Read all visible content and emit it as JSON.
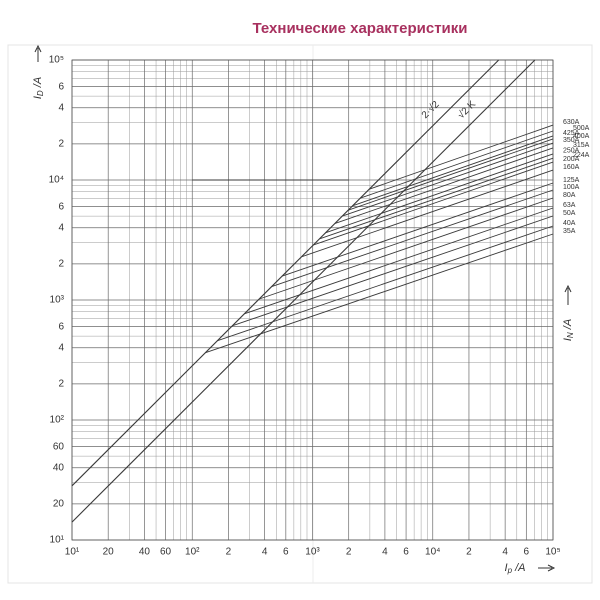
{
  "chart_data": {
    "type": "line",
    "title": "Технические характеристики",
    "xlabel": {
      "symbol": "I",
      "subscript": "p",
      "unit": " /A"
    },
    "ylabel": {
      "symbol": "I",
      "subscript": "D",
      "unit": " /A"
    },
    "y2label": {
      "symbol": "I",
      "subscript": "N",
      "unit": " /A"
    },
    "log_x": true,
    "log_y": true,
    "grid": true,
    "color": "#3a3a3a",
    "xlim": [
      10,
      100000
    ],
    "ylim": [
      10,
      100000
    ],
    "xticks": [
      {
        "value": 10,
        "label": "10¹"
      },
      20,
      40,
      60,
      {
        "value": 100,
        "label": "10²"
      },
      {
        "value": 200,
        "label": "2"
      },
      {
        "value": 400,
        "label": "4"
      },
      {
        "value": 600,
        "label": "6"
      },
      {
        "value": 1000,
        "label": "10³"
      },
      {
        "value": 2000,
        "label": "2"
      },
      {
        "value": 4000,
        "label": "4"
      },
      {
        "value": 6000,
        "label": "6"
      },
      {
        "value": 10000,
        "label": "10⁴"
      },
      {
        "value": 20000,
        "label": "2"
      },
      {
        "value": 40000,
        "label": "4"
      },
      {
        "value": 60000,
        "label": "6"
      },
      {
        "value": 100000,
        "label": "10⁵"
      }
    ],
    "yticks": [
      {
        "value": 10,
        "label": "10¹"
      },
      20,
      40,
      60,
      {
        "value": 100,
        "label": "10²"
      },
      {
        "value": 200,
        "label": "2"
      },
      {
        "value": 400,
        "label": "4"
      },
      {
        "value": 600,
        "label": "6"
      },
      {
        "value": 1000,
        "label": "10³"
      },
      {
        "value": 2000,
        "label": "2"
      },
      {
        "value": 4000,
        "label": "4"
      },
      {
        "value": 6000,
        "label": "6"
      },
      {
        "value": 10000,
        "label": "10⁴"
      },
      {
        "value": 20000,
        "label": "2"
      },
      {
        "value": 40000,
        "label": "4"
      },
      {
        "value": 60000,
        "label": "6"
      },
      {
        "value": 100000,
        "label": "10⁵"
      }
    ],
    "xminorticks": [
      30,
      50,
      70,
      80,
      90,
      300,
      500,
      700,
      800,
      900,
      3000,
      5000,
      7000,
      8000,
      9000,
      30000,
      50000,
      70000,
      80000,
      90000
    ],
    "yminorticks": [
      30,
      50,
      70,
      80,
      90,
      300,
      500,
      700,
      800,
      900,
      3000,
      5000,
      7000,
      8000,
      9000,
      30000,
      50000,
      70000,
      80000,
      90000
    ],
    "limit_lines": [
      {
        "name": "2·√2",
        "x": [
          10,
          35355
        ],
        "values": [
          28.3,
          100000
        ]
      },
      {
        "name": "√2 K",
        "x": [
          10,
          70711
        ],
        "values": [
          14.1,
          100000
        ]
      }
    ],
    "reference_line": {
      "x": [
        100,
        2000
      ],
      "values": [
        10000,
        10000
      ]
    },
    "series": [
      {
        "name": "630A",
        "x": [
          2960,
          100000
        ],
        "values": [
          8380,
          28700
        ]
      },
      {
        "name": "500A",
        "x": [
          2490,
          100000
        ],
        "values": [
          7050,
          25600
        ]
      },
      {
        "name": "425A",
        "x": [
          2150,
          100000
        ],
        "values": [
          6090,
          23300
        ]
      },
      {
        "name": "400A",
        "x": [
          1980,
          100000
        ],
        "values": [
          5600,
          22000
        ]
      },
      {
        "name": "350A",
        "x": [
          1770,
          100000
        ],
        "values": [
          5000,
          20300
        ]
      },
      {
        "name": "315A",
        "x": [
          1530,
          100000
        ],
        "values": [
          4330,
          18500
        ]
      },
      {
        "name": "250A",
        "x": [
          1280,
          100000
        ],
        "values": [
          3630,
          16500
        ]
      },
      {
        "name": "224A",
        "x": [
          1140,
          100000
        ],
        "values": [
          3230,
          15200
        ]
      },
      {
        "name": "200A",
        "x": [
          1020,
          100000
        ],
        "values": [
          2880,
          14100
        ]
      },
      {
        "name": "160A",
        "x": [
          810,
          100000
        ],
        "values": [
          2290,
          12100
        ]
      },
      {
        "name": "125A",
        "x": [
          557,
          100000
        ],
        "values": [
          1580,
          9440
        ]
      },
      {
        "name": "100A",
        "x": [
          455,
          100000
        ],
        "values": [
          1290,
          8260
        ]
      },
      {
        "name": "80A",
        "x": [
          361,
          100000
        ],
        "values": [
          1020,
          7080
        ]
      },
      {
        "name": "63A",
        "x": [
          271,
          100000
        ],
        "values": [
          767,
          5840
        ]
      },
      {
        "name": "50A",
        "x": [
          215,
          100000
        ],
        "values": [
          609,
          5010
        ]
      },
      {
        "name": "40A",
        "x": [
          161,
          100000
        ],
        "values": [
          457,
          4140
        ]
      },
      {
        "name": "35A",
        "x": [
          128,
          100000
        ],
        "values": [
          363,
          3550
        ]
      }
    ]
  }
}
